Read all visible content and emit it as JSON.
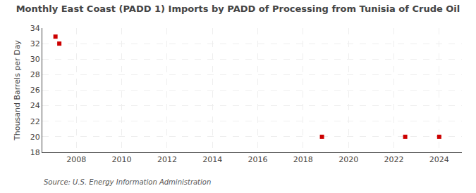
{
  "chart_data": {
    "type": "scatter",
    "title": "Monthly East Coast (PADD 1) Imports by PADD of Processing from Tunisia of Crude Oil",
    "ylabel": "Thousand Barrels per Day",
    "annotations": [
      "Source: U.S. Energy Information Administration"
    ],
    "x": [
      2007.08,
      2007.25,
      2018.83,
      2022.5,
      2024.0
    ],
    "values": [
      32.9,
      32.0,
      20.0,
      20.0,
      20.0
    ],
    "color": "#cc0000",
    "marker": "square",
    "xlim": [
      2006.5,
      2025.0
    ],
    "xticks": [
      2008,
      2010,
      2012,
      2014,
      2016,
      2018,
      2020,
      2022,
      2024
    ],
    "ylim": [
      18,
      34
    ],
    "yticks": [
      18,
      20,
      22,
      24,
      26,
      28,
      30,
      32,
      34
    ],
    "grid": true
  }
}
